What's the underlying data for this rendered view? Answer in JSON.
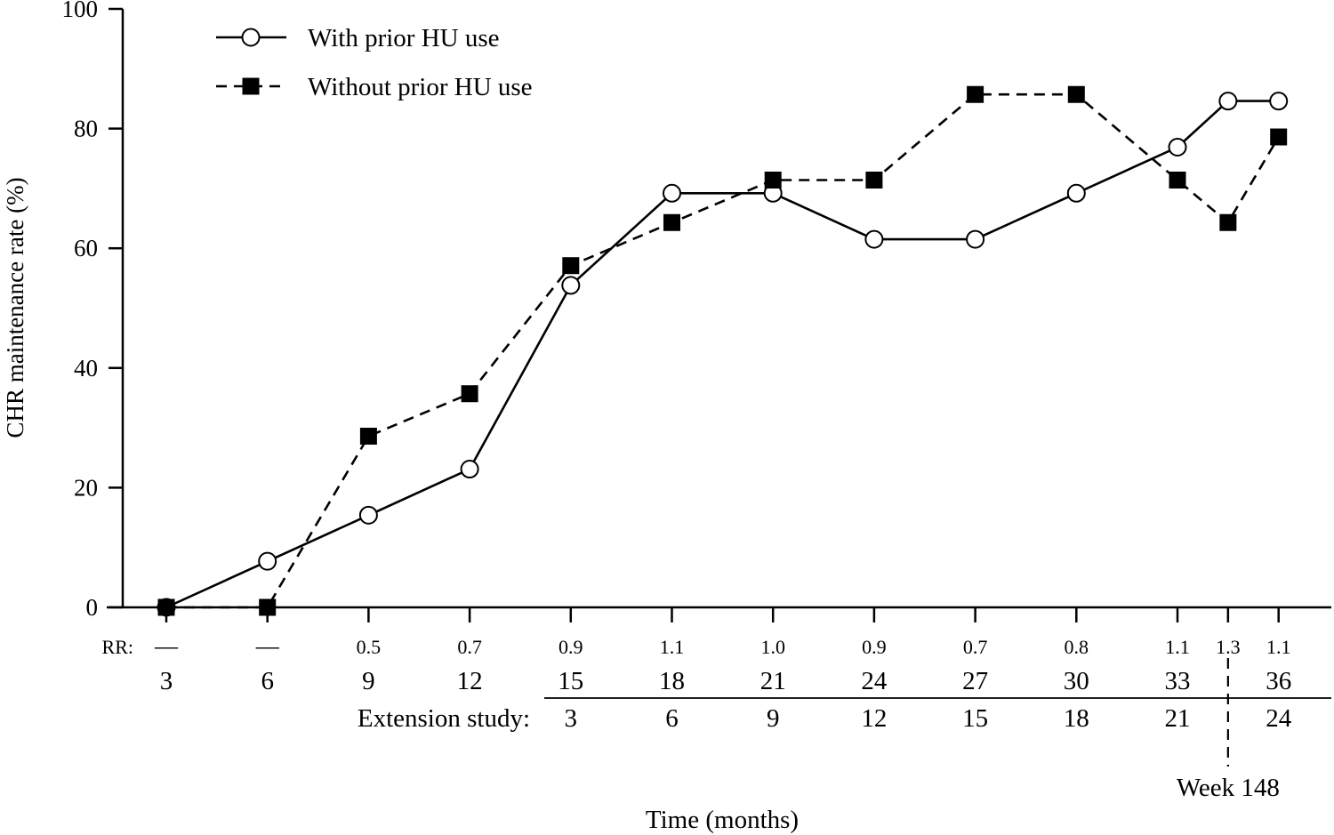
{
  "chart_data": {
    "type": "line",
    "title": "",
    "xlabel": "Time (months)",
    "ylabel": "CHR maintenance rate (%)",
    "ylim": [
      0,
      100
    ],
    "yticks": [
      "0",
      "20",
      "40",
      "60",
      "80",
      "100"
    ],
    "x": [
      3,
      6,
      9,
      12,
      15,
      18,
      21,
      24,
      27,
      30,
      33,
      34.5,
      36
    ],
    "x_labels": [
      "3",
      "6",
      "9",
      "12",
      "15",
      "18",
      "21",
      "24",
      "27",
      "30",
      "33",
      "",
      "36"
    ],
    "rr_label": "RR:",
    "rr_values": [
      "—",
      "—",
      "0.5",
      "0.7",
      "0.9",
      "1.1",
      "1.0",
      "0.9",
      "0.7",
      "0.8",
      "1.1",
      "1.3",
      "1.1"
    ],
    "extension_label": "Extension study:",
    "extension_values": [
      "3",
      "6",
      "9",
      "12",
      "15",
      "18",
      "21",
      "24"
    ],
    "marker_label": "Week 148",
    "marker_x": 34.5,
    "legend_position": "top-left",
    "series": [
      {
        "name": "With prior HU use",
        "marker": "open-circle",
        "line": "solid",
        "color": "#000000",
        "values": [
          0,
          7.7,
          15.4,
          23.1,
          53.8,
          69.2,
          69.2,
          61.5,
          61.5,
          69.2,
          76.9,
          84.6,
          84.6
        ]
      },
      {
        "name": "Without prior HU use",
        "marker": "filled-square",
        "line": "dashed",
        "color": "#000000",
        "values": [
          0,
          0,
          28.6,
          35.7,
          57.1,
          64.3,
          71.4,
          71.4,
          85.7,
          85.7,
          71.4,
          64.3,
          78.6
        ]
      }
    ]
  }
}
